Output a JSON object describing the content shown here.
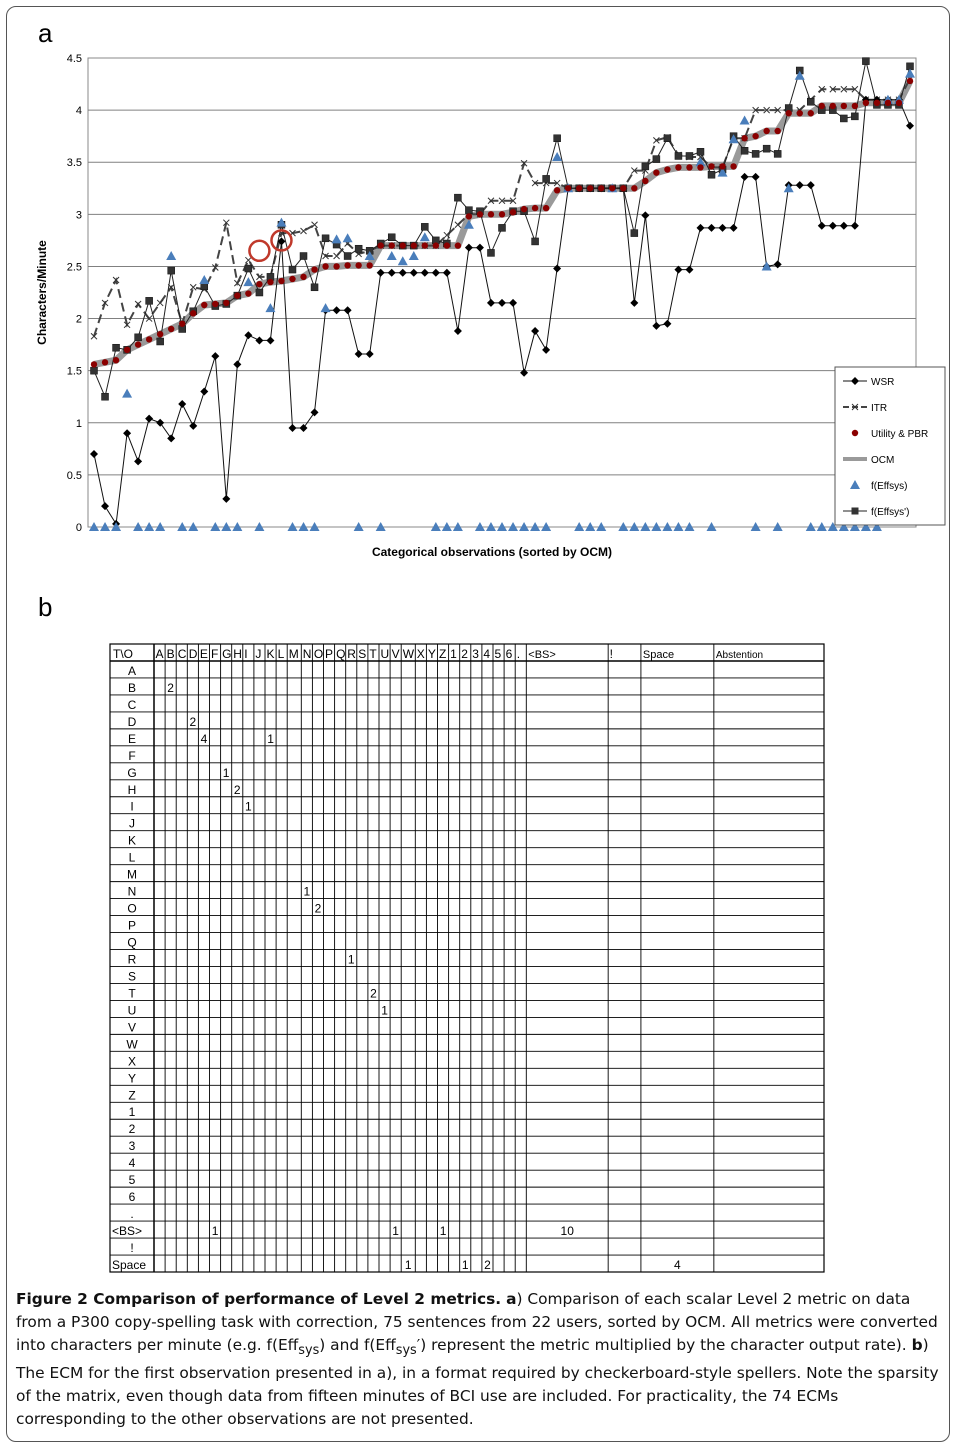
{
  "panel_a_letter": "a",
  "panel_b_letter": "b",
  "chart_data": {
    "type": "line",
    "ylabel": "Characters/Minute",
    "xlabel": "Categorical observations (sorted by OCM)",
    "ylim": [
      0,
      4.5
    ],
    "yticks": [
      "0",
      "0.5",
      "1",
      "1.5",
      "2",
      "2.5",
      "3",
      "3.5",
      "4",
      "4.5"
    ],
    "grid": true,
    "legend_position": "bottom-right",
    "n_observations": 75,
    "series": [
      {
        "name": "WSR",
        "marker": "diamond",
        "values": [
          0.7,
          0.2,
          0.03,
          0.9,
          0.63,
          1.04,
          1.0,
          0.85,
          1.18,
          0.97,
          1.3,
          1.64,
          0.27,
          1.56,
          1.84,
          1.79,
          1.79,
          2.74,
          0.95,
          0.95,
          1.1,
          2.08,
          2.08,
          2.08,
          1.66,
          1.66,
          2.44,
          2.44,
          2.44,
          2.44,
          2.44,
          2.44,
          2.44,
          1.88,
          2.68,
          2.68,
          2.15,
          2.15,
          2.15,
          1.48,
          1.88,
          1.7,
          2.48,
          3.25,
          3.25,
          3.25,
          3.25,
          3.25,
          3.25,
          2.15,
          2.99,
          1.93,
          1.95,
          2.47,
          2.47,
          2.87,
          2.87,
          2.87,
          2.87,
          3.36,
          3.36,
          2.5,
          2.52,
          3.28,
          3.28,
          3.28,
          2.89,
          2.89,
          2.89,
          2.89,
          4.1,
          4.1,
          4.1,
          4.1,
          3.85
        ]
      },
      {
        "name": "ITR",
        "marker": "x",
        "values": [
          1.83,
          2.15,
          2.37,
          1.94,
          2.14,
          2.0,
          2.15,
          2.3,
          1.95,
          2.3,
          2.28,
          2.49,
          2.92,
          2.34,
          2.56,
          2.4,
          2.4,
          2.82,
          2.82,
          2.84,
          2.9,
          2.6,
          2.6,
          2.72,
          2.62,
          2.65,
          2.7,
          2.7,
          2.7,
          2.7,
          2.7,
          2.7,
          2.8,
          2.9,
          3.0,
          3.0,
          3.13,
          3.13,
          3.13,
          3.49,
          3.3,
          3.3,
          3.3,
          3.25,
          3.25,
          3.25,
          3.25,
          3.25,
          3.25,
          3.42,
          3.42,
          3.71,
          3.74,
          3.57,
          3.55,
          3.55,
          3.45,
          3.45,
          3.73,
          3.73,
          4.0,
          4.0,
          4.0,
          4.0,
          4.0,
          4.1,
          4.2,
          4.2,
          4.2,
          4.2,
          4.1,
          4.1,
          4.1,
          4.1,
          4.3
        ]
      },
      {
        "name": "Utility & PBR",
        "marker": "circle",
        "values": [
          1.56,
          1.58,
          1.6,
          1.7,
          1.75,
          1.8,
          1.85,
          1.9,
          1.95,
          2.05,
          2.13,
          2.14,
          2.15,
          2.22,
          2.24,
          2.33,
          2.35,
          2.36,
          2.38,
          2.4,
          2.47,
          2.5,
          2.5,
          2.51,
          2.51,
          2.51,
          2.7,
          2.7,
          2.7,
          2.7,
          2.7,
          2.7,
          2.7,
          2.7,
          2.98,
          3.0,
          3.0,
          3.0,
          3.02,
          3.05,
          3.06,
          3.06,
          3.23,
          3.25,
          3.25,
          3.25,
          3.25,
          3.25,
          3.25,
          3.25,
          3.32,
          3.4,
          3.43,
          3.45,
          3.45,
          3.45,
          3.46,
          3.46,
          3.46,
          3.73,
          3.75,
          3.8,
          3.8,
          3.97,
          3.97,
          3.97,
          4.04,
          4.04,
          4.04,
          4.04,
          4.07,
          4.07,
          4.07,
          4.07,
          4.28
        ]
      },
      {
        "name": "OCM",
        "marker": "none",
        "values": [
          1.56,
          1.58,
          1.6,
          1.7,
          1.75,
          1.8,
          1.85,
          1.9,
          1.95,
          2.05,
          2.13,
          2.14,
          2.15,
          2.22,
          2.24,
          2.33,
          2.35,
          2.36,
          2.38,
          2.4,
          2.47,
          2.5,
          2.5,
          2.51,
          2.51,
          2.51,
          2.7,
          2.7,
          2.7,
          2.7,
          2.7,
          2.7,
          2.7,
          2.7,
          2.98,
          3.0,
          3.0,
          3.0,
          3.02,
          3.05,
          3.06,
          3.06,
          3.23,
          3.25,
          3.25,
          3.25,
          3.25,
          3.25,
          3.25,
          3.25,
          3.32,
          3.4,
          3.43,
          3.45,
          3.45,
          3.45,
          3.46,
          3.46,
          3.46,
          3.73,
          3.75,
          3.8,
          3.8,
          3.97,
          3.97,
          3.97,
          4.04,
          4.04,
          4.04,
          4.04,
          4.07,
          4.07,
          4.07,
          4.07,
          4.28
        ]
      },
      {
        "name": "f(Effsys)",
        "marker": "triangle",
        "values": [
          0,
          0,
          0,
          1.28,
          0,
          0,
          0,
          2.6,
          0,
          0,
          2.37,
          0,
          0,
          0,
          2.35,
          0,
          2.1,
          2.92,
          0,
          0,
          0,
          2.1,
          2.76,
          2.77,
          0,
          2.6,
          0,
          2.6,
          2.55,
          2.6,
          2.78,
          0,
          0,
          0,
          2.9,
          0,
          0,
          0,
          0,
          0,
          0,
          0,
          3.55,
          3.25,
          0,
          0,
          0,
          3.25,
          0,
          0,
          0,
          0,
          0,
          0,
          0,
          3.5,
          0,
          3.4,
          3.72,
          3.9,
          0,
          2.5,
          0,
          3.25,
          4.33,
          0,
          0,
          0,
          0,
          0,
          0,
          0,
          4.1,
          4.1,
          4.35
        ]
      },
      {
        "name": "f(Effsys')",
        "marker": "square",
        "values": [
          1.5,
          1.25,
          1.72,
          1.7,
          1.82,
          2.17,
          1.78,
          2.46,
          1.9,
          2.07,
          2.31,
          2.12,
          2.14,
          2.22,
          2.48,
          2.25,
          2.4,
          2.9,
          2.47,
          2.6,
          2.3,
          2.77,
          2.71,
          2.6,
          2.67,
          2.65,
          2.72,
          2.78,
          2.7,
          2.7,
          2.88,
          2.75,
          2.72,
          3.16,
          3.04,
          3.03,
          2.63,
          2.87,
          3.03,
          3.03,
          2.74,
          3.34,
          3.73,
          3.25,
          3.25,
          3.25,
          3.25,
          3.25,
          3.25,
          2.82,
          3.46,
          3.53,
          3.73,
          3.56,
          3.56,
          3.6,
          3.38,
          3.43,
          3.75,
          3.61,
          3.58,
          3.63,
          3.58,
          4.02,
          4.38,
          4.08,
          4.0,
          4.0,
          3.92,
          3.94,
          4.47,
          4.05,
          4.05,
          4.05,
          4.42
        ]
      }
    ],
    "annotations": [
      "circled point near observation 15",
      "circled point near observation 18"
    ]
  },
  "matrix": {
    "corner": "T\\O",
    "columns": [
      "A",
      "B",
      "C",
      "D",
      "E",
      "F",
      "G",
      "H",
      "I",
      "J",
      "K",
      "L",
      "M",
      "N",
      "O",
      "P",
      "Q",
      "R",
      "S",
      "T",
      "U",
      "V",
      "W",
      "X",
      "Y",
      "Z",
      "1",
      "2",
      "3",
      "4",
      "5",
      "6",
      ".",
      "<BS>",
      "!",
      "Space",
      "Abstention"
    ],
    "rows": [
      "A",
      "B",
      "C",
      "D",
      "E",
      "F",
      "G",
      "H",
      "I",
      "J",
      "K",
      "L",
      "M",
      "N",
      "O",
      "P",
      "Q",
      "R",
      "S",
      "T",
      "U",
      "V",
      "W",
      "X",
      "Y",
      "Z",
      "1",
      "2",
      "3",
      "4",
      "5",
      "6",
      ".",
      "<BS>",
      "!",
      "Space"
    ],
    "cells": [
      {
        "row": "B",
        "col": "B",
        "value": "2"
      },
      {
        "row": "D",
        "col": "D",
        "value": "2"
      },
      {
        "row": "E",
        "col": "E",
        "value": "4"
      },
      {
        "row": "E",
        "col": "K",
        "value": "1"
      },
      {
        "row": "G",
        "col": "G",
        "value": "1"
      },
      {
        "row": "H",
        "col": "H",
        "value": "2"
      },
      {
        "row": "I",
        "col": "I",
        "value": "1"
      },
      {
        "row": "N",
        "col": "N",
        "value": "1"
      },
      {
        "row": "O",
        "col": "O",
        "value": "2"
      },
      {
        "row": "R",
        "col": "R",
        "value": "1"
      },
      {
        "row": "T",
        "col": "T",
        "value": "2"
      },
      {
        "row": "U",
        "col": "U",
        "value": "1"
      },
      {
        "row": "<BS>",
        "col": "F",
        "value": "1"
      },
      {
        "row": "<BS>",
        "col": "V",
        "value": "1"
      },
      {
        "row": "<BS>",
        "col": "Z",
        "value": "1"
      },
      {
        "row": "<BS>",
        "col": "<BS>",
        "value": "10"
      },
      {
        "row": "Space",
        "col": "W",
        "value": "1"
      },
      {
        "row": "Space",
        "col": "2",
        "value": "1"
      },
      {
        "row": "Space",
        "col": "4",
        "value": "2"
      },
      {
        "row": "Space",
        "col": "Space",
        "value": "4"
      }
    ]
  },
  "caption": {
    "title": "Figure 2 Comparison of performance of Level 2 metrics.",
    "a_bold": "a",
    "a_text1": ") Comparison of each scalar Level 2 metric on data from a P300 copy-spelling task with correction, 75 sentences from 22 users, sorted by OCM. All metrics were converted into characters per minute (e.g. f(Eff",
    "sub1": "sys",
    "a_text2": ") and f(Eff",
    "sub2": "sys",
    "a_text3": "′) represent the metric multiplied by the character output rate). ",
    "b_bold": "b",
    "b_text": ") The ECM for the first observation presented in a), in a format required by checkerboard-style spellers. Note the sparsity of the matrix, even though data from fifteen minutes of BCI use are included. For practicality, the 74 ECMs corresponding to the other observations are not presented."
  }
}
